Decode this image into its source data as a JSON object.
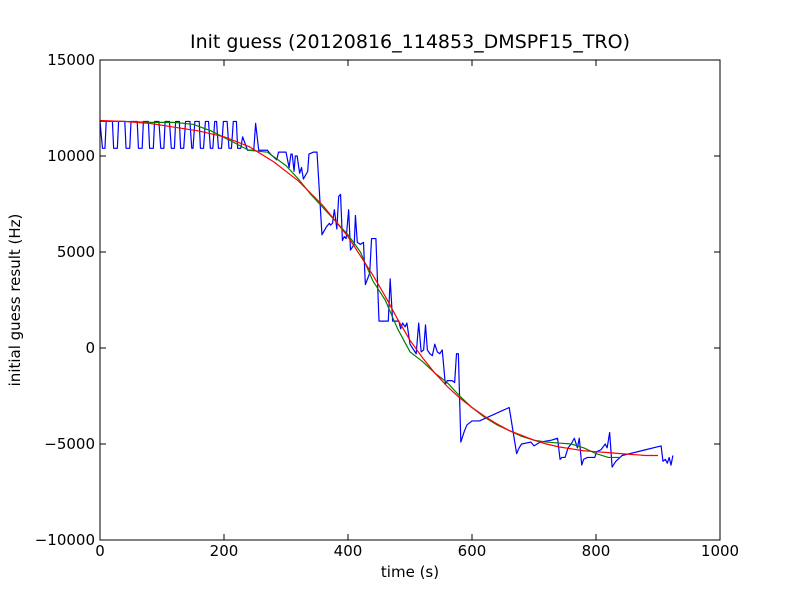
{
  "chart_data": {
    "type": "line",
    "title": "Init guess (20120816_114853_DMSPF15_TRO)",
    "xlabel": "time (s)",
    "ylabel": "initial guess result (Hz)",
    "xlim": [
      0,
      1000
    ],
    "ylim": [
      -10000,
      15000
    ],
    "xticks": [
      0,
      200,
      400,
      600,
      800,
      1000
    ],
    "yticks": [
      -10000,
      -5000,
      0,
      5000,
      10000,
      15000
    ],
    "xtick_labels": [
      "0",
      "200",
      "400",
      "600",
      "800",
      "1000"
    ],
    "ytick_labels": [
      "−10000",
      "−5000",
      "0",
      "5000",
      "10000",
      "15000"
    ],
    "grid": false,
    "legend": "none",
    "series": [
      {
        "color": "#0000ff",
        "points": [
          [
            0,
            11800
          ],
          [
            4,
            10400
          ],
          [
            8,
            10400
          ],
          [
            10,
            11800
          ],
          [
            20,
            11800
          ],
          [
            22,
            10400
          ],
          [
            28,
            10400
          ],
          [
            30,
            11800
          ],
          [
            40,
            11800
          ],
          [
            42,
            10400
          ],
          [
            48,
            10400
          ],
          [
            50,
            11800
          ],
          [
            60,
            11800
          ],
          [
            62,
            10400
          ],
          [
            68,
            10400
          ],
          [
            70,
            11800
          ],
          [
            78,
            11800
          ],
          [
            80,
            10400
          ],
          [
            86,
            10400
          ],
          [
            88,
            11800
          ],
          [
            95,
            11800
          ],
          [
            98,
            10400
          ],
          [
            103,
            10400
          ],
          [
            105,
            11800
          ],
          [
            112,
            11800
          ],
          [
            115,
            10400
          ],
          [
            120,
            10400
          ],
          [
            122,
            11800
          ],
          [
            128,
            11800
          ],
          [
            130,
            10400
          ],
          [
            135,
            10400
          ],
          [
            138,
            11800
          ],
          [
            145,
            11800
          ],
          [
            148,
            10400
          ],
          [
            150,
            10400
          ],
          [
            153,
            11800
          ],
          [
            160,
            11800
          ],
          [
            162,
            10400
          ],
          [
            167,
            10400
          ],
          [
            170,
            11800
          ],
          [
            175,
            11800
          ],
          [
            178,
            10400
          ],
          [
            182,
            10400
          ],
          [
            185,
            11800
          ],
          [
            188,
            11800
          ],
          [
            191,
            10400
          ],
          [
            196,
            10400
          ],
          [
            199,
            11800
          ],
          [
            205,
            11800
          ],
          [
            208,
            10400
          ],
          [
            212,
            10400
          ],
          [
            215,
            11800
          ],
          [
            220,
            11800
          ],
          [
            222,
            10400
          ],
          [
            227,
            10400
          ],
          [
            230,
            11000
          ],
          [
            238,
            10300
          ],
          [
            248,
            10300
          ],
          [
            251,
            11700
          ],
          [
            256,
            10300
          ],
          [
            270,
            10300
          ],
          [
            275,
            10100
          ],
          [
            285,
            9800
          ],
          [
            288,
            10200
          ],
          [
            300,
            10200
          ],
          [
            305,
            9400
          ],
          [
            308,
            10100
          ],
          [
            310,
            10100
          ],
          [
            313,
            9200
          ],
          [
            315,
            10000
          ],
          [
            318,
            10000
          ],
          [
            322,
            9100
          ],
          [
            325,
            9400
          ],
          [
            328,
            8800
          ],
          [
            335,
            9200
          ],
          [
            337,
            10100
          ],
          [
            344,
            10200
          ],
          [
            350,
            10200
          ],
          [
            358,
            5900
          ],
          [
            365,
            6300
          ],
          [
            370,
            6500
          ],
          [
            372,
            6400
          ],
          [
            375,
            6500
          ],
          [
            378,
            7200
          ],
          [
            382,
            6200
          ],
          [
            385,
            7900
          ],
          [
            388,
            8000
          ],
          [
            391,
            5600
          ],
          [
            394,
            5800
          ],
          [
            397,
            5700
          ],
          [
            401,
            7200
          ],
          [
            404,
            5100
          ],
          [
            410,
            5400
          ],
          [
            412,
            6900
          ],
          [
            415,
            5500
          ],
          [
            420,
            5400
          ],
          [
            425,
            5500
          ],
          [
            428,
            3300
          ],
          [
            435,
            3900
          ],
          [
            438,
            5700
          ],
          [
            445,
            5700
          ],
          [
            450,
            1400
          ],
          [
            458,
            1400
          ],
          [
            465,
            1400
          ],
          [
            468,
            3600
          ],
          [
            472,
            1400
          ],
          [
            482,
            1400
          ],
          [
            485,
            1000
          ],
          [
            488,
            1300
          ],
          [
            492,
            1100
          ],
          [
            495,
            1300
          ],
          [
            500,
            200
          ],
          [
            510,
            -300
          ],
          [
            514,
            1300
          ],
          [
            518,
            -200
          ],
          [
            522,
            -100
          ],
          [
            525,
            1200
          ],
          [
            528,
            -100
          ],
          [
            532,
            -300
          ],
          [
            536,
            -400
          ],
          [
            540,
            200
          ],
          [
            544,
            -200
          ],
          [
            548,
            -300
          ],
          [
            552,
            -100
          ],
          [
            557,
            -1900
          ],
          [
            560,
            -1700
          ],
          [
            568,
            -1700
          ],
          [
            572,
            -1800
          ],
          [
            575,
            -300
          ],
          [
            578,
            -300
          ],
          [
            582,
            -4900
          ],
          [
            588,
            -4300
          ],
          [
            592,
            -4000
          ],
          [
            600,
            -3800
          ],
          [
            612,
            -3800
          ],
          [
            660,
            -3100
          ],
          [
            672,
            -5500
          ],
          [
            676,
            -5200
          ],
          [
            680,
            -5000
          ],
          [
            695,
            -4900
          ],
          [
            700,
            -5100
          ],
          [
            710,
            -4900
          ],
          [
            728,
            -4800
          ],
          [
            738,
            -4700
          ],
          [
            742,
            -5800
          ],
          [
            745,
            -5700
          ],
          [
            750,
            -5700
          ],
          [
            755,
            -5200
          ],
          [
            760,
            -5000
          ],
          [
            765,
            -4700
          ],
          [
            770,
            -5200
          ],
          [
            773,
            -4700
          ],
          [
            777,
            -6100
          ],
          [
            780,
            -5800
          ],
          [
            786,
            -5700
          ],
          [
            798,
            -5700
          ],
          [
            801,
            -5400
          ],
          [
            808,
            -5300
          ],
          [
            815,
            -5000
          ],
          [
            818,
            -5200
          ],
          [
            822,
            -4400
          ],
          [
            826,
            -6200
          ],
          [
            832,
            -5900
          ],
          [
            842,
            -5600
          ],
          [
            880,
            -5300
          ],
          [
            905,
            -5100
          ],
          [
            908,
            -5900
          ],
          [
            912,
            -5800
          ],
          [
            915,
            -6000
          ],
          [
            918,
            -5700
          ],
          [
            921,
            -6100
          ],
          [
            924,
            -5600
          ]
        ]
      },
      {
        "color": "#008000",
        "points": [
          [
            0,
            11800
          ],
          [
            40,
            11800
          ],
          [
            80,
            11750
          ],
          [
            120,
            11750
          ],
          [
            150,
            11650
          ],
          [
            180,
            11300
          ],
          [
            210,
            10800
          ],
          [
            240,
            10300
          ],
          [
            270,
            10200
          ],
          [
            300,
            9500
          ],
          [
            320,
            8800
          ],
          [
            340,
            8000
          ],
          [
            360,
            7300
          ],
          [
            380,
            6600
          ],
          [
            400,
            5900
          ],
          [
            420,
            5000
          ],
          [
            440,
            3500
          ],
          [
            460,
            2500
          ],
          [
            480,
            1000
          ],
          [
            500,
            -200
          ],
          [
            520,
            -700
          ],
          [
            540,
            -1300
          ],
          [
            560,
            -1800
          ],
          [
            580,
            -2500
          ],
          [
            600,
            -3100
          ],
          [
            620,
            -3600
          ],
          [
            640,
            -4000
          ],
          [
            660,
            -4300
          ],
          [
            680,
            -4600
          ],
          [
            700,
            -4800
          ],
          [
            720,
            -4900
          ],
          [
            740,
            -4950
          ],
          [
            760,
            -5000
          ],
          [
            780,
            -5200
          ],
          [
            800,
            -5500
          ],
          [
            820,
            -5700
          ],
          [
            840,
            -5700
          ]
        ]
      },
      {
        "color": "#ff0000",
        "points": [
          [
            0,
            11850
          ],
          [
            40,
            11800
          ],
          [
            80,
            11700
          ],
          [
            120,
            11500
          ],
          [
            160,
            11300
          ],
          [
            200,
            11000
          ],
          [
            240,
            10500
          ],
          [
            280,
            9700
          ],
          [
            320,
            8700
          ],
          [
            360,
            7400
          ],
          [
            380,
            6600
          ],
          [
            400,
            5800
          ],
          [
            420,
            4800
          ],
          [
            440,
            3800
          ],
          [
            460,
            2700
          ],
          [
            480,
            1500
          ],
          [
            500,
            400
          ],
          [
            520,
            -500
          ],
          [
            540,
            -1300
          ],
          [
            560,
            -2000
          ],
          [
            580,
            -2600
          ],
          [
            600,
            -3100
          ],
          [
            620,
            -3550
          ],
          [
            640,
            -3950
          ],
          [
            660,
            -4300
          ],
          [
            680,
            -4550
          ],
          [
            700,
            -4800
          ],
          [
            720,
            -5000
          ],
          [
            740,
            -5150
          ],
          [
            760,
            -5250
          ],
          [
            780,
            -5350
          ],
          [
            800,
            -5400
          ],
          [
            820,
            -5450
          ],
          [
            840,
            -5500
          ],
          [
            860,
            -5550
          ],
          [
            880,
            -5600
          ],
          [
            900,
            -5600
          ]
        ]
      }
    ]
  }
}
